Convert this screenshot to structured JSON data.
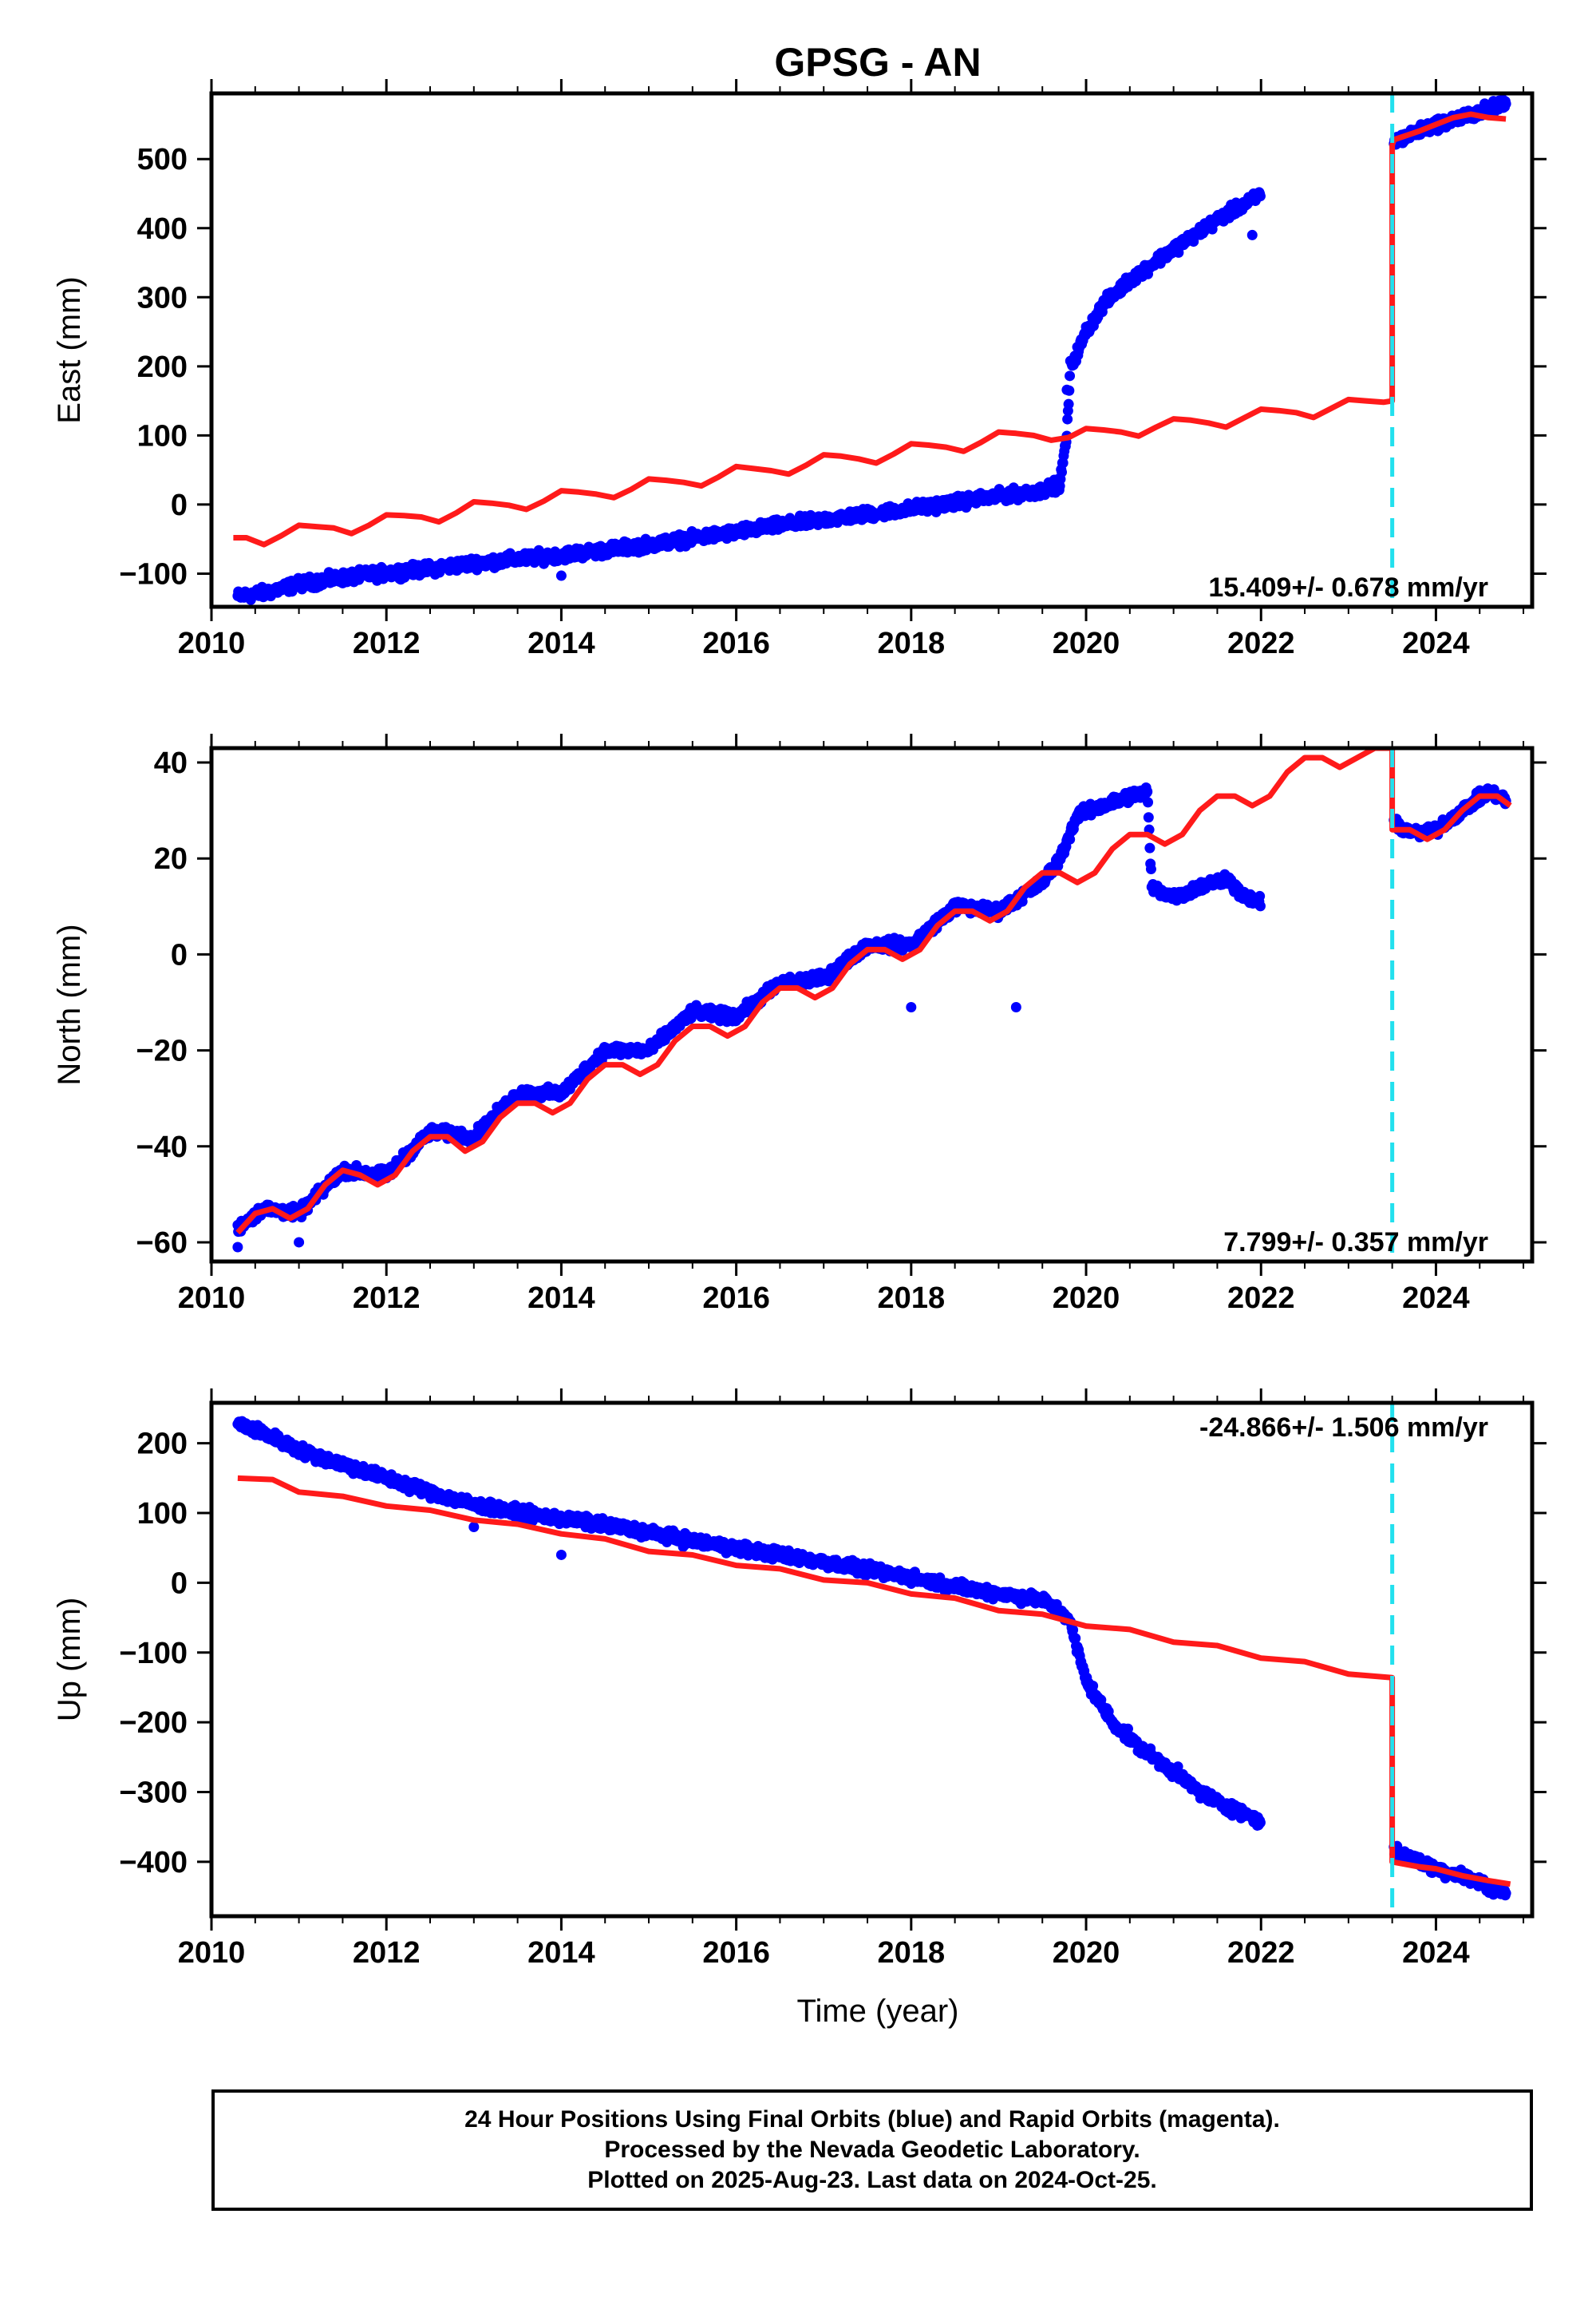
{
  "title": "GPSG - AN",
  "xlabel": "Time (year)",
  "colors": {
    "final_orbits": "#0000ff",
    "model": "#ff1a1a",
    "event_line": "#22e0ee",
    "axes": "#000000"
  },
  "footer": {
    "line1": "24 Hour Positions Using Final Orbits (blue) and Rapid Orbits (magenta).",
    "line2": "Processed by the Nevada Geodetic Laboratory.",
    "line3": "Plotted on 2025-Aug-23. Last data on 2024-Oct-25."
  },
  "chart_data": [
    {
      "type": "scatter",
      "panel": "east",
      "ylabel": "East (mm)",
      "rate_label": "15.409+/- 0.678 mm/yr",
      "xlim": [
        2010,
        2025.1
      ],
      "ylim": [
        -148,
        595
      ],
      "xticks": [
        2010,
        2012,
        2014,
        2016,
        2018,
        2020,
        2022,
        2024
      ],
      "yticks": [
        -100,
        0,
        100,
        200,
        300,
        400,
        500
      ],
      "event_line_x": 2023.5,
      "observations": [
        [
          2010.3,
          -133
        ],
        [
          2010.6,
          -128
        ],
        [
          2011.0,
          -115
        ],
        [
          2011.5,
          -106
        ],
        [
          2012.0,
          -99
        ],
        [
          2012.5,
          -93
        ],
        [
          2013.0,
          -85
        ],
        [
          2013.5,
          -79
        ],
        [
          2014.0,
          -73
        ],
        [
          2014.5,
          -66
        ],
        [
          2015.0,
          -58
        ],
        [
          2015.5,
          -49
        ],
        [
          2016.0,
          -40
        ],
        [
          2016.5,
          -30
        ],
        [
          2017.0,
          -22
        ],
        [
          2017.5,
          -14
        ],
        [
          2018.0,
          -6
        ],
        [
          2018.5,
          3
        ],
        [
          2019.0,
          12
        ],
        [
          2019.5,
          20
        ],
        [
          2019.7,
          30
        ],
        [
          2019.78,
          100
        ],
        [
          2019.82,
          200
        ],
        [
          2019.9,
          220
        ],
        [
          2020.0,
          250
        ],
        [
          2020.2,
          290
        ],
        [
          2020.5,
          325
        ],
        [
          2020.8,
          352
        ],
        [
          2021.0,
          370
        ],
        [
          2021.3,
          395
        ],
        [
          2021.6,
          420
        ],
        [
          2021.9,
          440
        ],
        [
          2022.0,
          450
        ],
        [
          2023.52,
          525
        ],
        [
          2023.8,
          540
        ],
        [
          2024.0,
          550
        ],
        [
          2024.3,
          560
        ],
        [
          2024.6,
          573
        ],
        [
          2024.8,
          580
        ]
      ],
      "outliers": [
        [
          2014.0,
          -103
        ],
        [
          2021.9,
          390
        ],
        [
          2019.78,
          166
        ]
      ],
      "model": [
        [
          2010.25,
          -48
        ],
        [
          2010.4,
          -48
        ],
        [
          2010.6,
          -58
        ],
        [
          2010.8,
          -45
        ],
        [
          2011.0,
          -30
        ],
        [
          2011.2,
          -32
        ],
        [
          2011.4,
          -34
        ],
        [
          2011.6,
          -42
        ],
        [
          2011.8,
          -30
        ],
        [
          2012.0,
          -15
        ],
        [
          2012.2,
          -16
        ],
        [
          2012.4,
          -18
        ],
        [
          2012.6,
          -25
        ],
        [
          2012.8,
          -12
        ],
        [
          2013.0,
          4
        ],
        [
          2013.2,
          2
        ],
        [
          2013.4,
          -1
        ],
        [
          2013.6,
          -7
        ],
        [
          2013.8,
          5
        ],
        [
          2014.0,
          20
        ],
        [
          2014.2,
          18
        ],
        [
          2014.4,
          15
        ],
        [
          2014.6,
          10
        ],
        [
          2014.8,
          22
        ],
        [
          2015.0,
          37
        ],
        [
          2015.2,
          35
        ],
        [
          2015.4,
          32
        ],
        [
          2015.6,
          27
        ],
        [
          2015.8,
          40
        ],
        [
          2016.0,
          55
        ],
        [
          2016.2,
          52
        ],
        [
          2016.4,
          49
        ],
        [
          2016.6,
          44
        ],
        [
          2016.8,
          57
        ],
        [
          2017.0,
          72
        ],
        [
          2017.2,
          70
        ],
        [
          2017.4,
          66
        ],
        [
          2017.6,
          60
        ],
        [
          2017.8,
          73
        ],
        [
          2018.0,
          88
        ],
        [
          2018.2,
          86
        ],
        [
          2018.4,
          83
        ],
        [
          2018.6,
          77
        ],
        [
          2018.8,
          90
        ],
        [
          2019.0,
          105
        ],
        [
          2019.2,
          103
        ],
        [
          2019.4,
          100
        ],
        [
          2019.6,
          93
        ],
        [
          2019.8,
          97
        ],
        [
          2020.0,
          110
        ],
        [
          2020.2,
          108
        ],
        [
          2020.4,
          105
        ],
        [
          2020.6,
          99
        ],
        [
          2020.8,
          112
        ],
        [
          2021.0,
          124
        ],
        [
          2021.2,
          122
        ],
        [
          2021.4,
          118
        ],
        [
          2021.6,
          112
        ],
        [
          2021.8,
          125
        ],
        [
          2022.0,
          138
        ],
        [
          2022.2,
          136
        ],
        [
          2022.4,
          133
        ],
        [
          2022.6,
          126
        ],
        [
          2022.8,
          139
        ],
        [
          2023.0,
          152
        ],
        [
          2023.2,
          150
        ],
        [
          2023.4,
          148
        ],
        [
          2023.5,
          150
        ],
        [
          2023.5,
          520
        ],
        [
          2023.52,
          528
        ],
        [
          2023.8,
          540
        ],
        [
          2024.0,
          550
        ],
        [
          2024.2,
          560
        ],
        [
          2024.4,
          565
        ],
        [
          2024.6,
          560
        ],
        [
          2024.8,
          558
        ]
      ]
    },
    {
      "type": "scatter",
      "panel": "north",
      "ylabel": "North (mm)",
      "rate_label": "7.799+/- 0.357 mm/yr",
      "xlim": [
        2010,
        2025.1
      ],
      "ylim": [
        -64,
        43
      ],
      "xticks": [
        2010,
        2012,
        2014,
        2016,
        2018,
        2020,
        2022,
        2024
      ],
      "yticks": [
        -60,
        -40,
        -20,
        0,
        20,
        40
      ],
      "event_line_x": 2023.5,
      "observations": [
        [
          2010.3,
          -57
        ],
        [
          2010.6,
          -53
        ],
        [
          2011.0,
          -54
        ],
        [
          2011.5,
          -45
        ],
        [
          2012.0,
          -46
        ],
        [
          2012.5,
          -37
        ],
        [
          2013.0,
          -38
        ],
        [
          2013.5,
          -29
        ],
        [
          2014.0,
          -29
        ],
        [
          2014.5,
          -20
        ],
        [
          2015.0,
          -20
        ],
        [
          2015.5,
          -12
        ],
        [
          2016.0,
          -13
        ],
        [
          2016.5,
          -6
        ],
        [
          2017.0,
          -5
        ],
        [
          2017.5,
          2
        ],
        [
          2018.0,
          2
        ],
        [
          2018.5,
          10
        ],
        [
          2019.0,
          9
        ],
        [
          2019.5,
          15
        ],
        [
          2019.7,
          20
        ],
        [
          2019.9,
          29
        ],
        [
          2020.2,
          31
        ],
        [
          2020.5,
          33
        ],
        [
          2020.7,
          34
        ],
        [
          2020.75,
          14
        ],
        [
          2021.0,
          12
        ],
        [
          2021.3,
          14
        ],
        [
          2021.6,
          16
        ],
        [
          2021.8,
          12
        ],
        [
          2022.0,
          11
        ],
        [
          2023.52,
          27
        ],
        [
          2023.8,
          25
        ],
        [
          2024.0,
          26
        ],
        [
          2024.3,
          30
        ],
        [
          2024.6,
          34
        ],
        [
          2024.8,
          32
        ]
      ],
      "outliers": [
        [
          2010.3,
          -61
        ],
        [
          2019.2,
          -11
        ],
        [
          2018.0,
          -11
        ],
        [
          2011.0,
          -60
        ]
      ],
      "model": [
        [
          2010.3,
          -58
        ],
        [
          2010.5,
          -54
        ],
        [
          2010.7,
          -53
        ],
        [
          2010.9,
          -55
        ],
        [
          2011.1,
          -53
        ],
        [
          2011.3,
          -48
        ],
        [
          2011.5,
          -45
        ],
        [
          2011.7,
          -46
        ],
        [
          2011.9,
          -48
        ],
        [
          2012.1,
          -46
        ],
        [
          2012.3,
          -41
        ],
        [
          2012.5,
          -38
        ],
        [
          2012.7,
          -38
        ],
        [
          2012.9,
          -41
        ],
        [
          2013.1,
          -39
        ],
        [
          2013.3,
          -34
        ],
        [
          2013.5,
          -31
        ],
        [
          2013.7,
          -31
        ],
        [
          2013.9,
          -33
        ],
        [
          2014.1,
          -31
        ],
        [
          2014.3,
          -26
        ],
        [
          2014.5,
          -23
        ],
        [
          2014.7,
          -23
        ],
        [
          2014.9,
          -25
        ],
        [
          2015.1,
          -23
        ],
        [
          2015.3,
          -18
        ],
        [
          2015.5,
          -15
        ],
        [
          2015.7,
          -15
        ],
        [
          2015.9,
          -17
        ],
        [
          2016.1,
          -15
        ],
        [
          2016.3,
          -10
        ],
        [
          2016.5,
          -7
        ],
        [
          2016.7,
          -7
        ],
        [
          2016.9,
          -9
        ],
        [
          2017.1,
          -7
        ],
        [
          2017.3,
          -2
        ],
        [
          2017.5,
          1
        ],
        [
          2017.7,
          1
        ],
        [
          2017.9,
          -1
        ],
        [
          2018.1,
          1
        ],
        [
          2018.3,
          6
        ],
        [
          2018.5,
          9
        ],
        [
          2018.7,
          9
        ],
        [
          2018.9,
          7
        ],
        [
          2019.1,
          9
        ],
        [
          2019.3,
          14
        ],
        [
          2019.5,
          17
        ],
        [
          2019.7,
          17
        ],
        [
          2019.9,
          15
        ],
        [
          2020.1,
          17
        ],
        [
          2020.3,
          22
        ],
        [
          2020.5,
          25
        ],
        [
          2020.7,
          25
        ],
        [
          2020.9,
          23
        ],
        [
          2021.1,
          25
        ],
        [
          2021.3,
          30
        ],
        [
          2021.5,
          33
        ],
        [
          2021.7,
          33
        ],
        [
          2021.9,
          31
        ],
        [
          2022.1,
          33
        ],
        [
          2022.3,
          38
        ],
        [
          2022.5,
          41
        ],
        [
          2022.7,
          41
        ],
        [
          2022.9,
          39
        ],
        [
          2023.1,
          41
        ],
        [
          2023.3,
          43
        ],
        [
          2023.5,
          43
        ],
        [
          2023.5,
          26
        ],
        [
          2023.7,
          26
        ],
        [
          2023.9,
          24
        ],
        [
          2024.1,
          26
        ],
        [
          2024.3,
          30
        ],
        [
          2024.5,
          33
        ],
        [
          2024.7,
          33
        ],
        [
          2024.85,
          31
        ]
      ]
    },
    {
      "type": "scatter",
      "panel": "up",
      "ylabel": "Up (mm)",
      "rate_label": "-24.866+/- 1.506 mm/yr",
      "xlim": [
        2010,
        2025.1
      ],
      "ylim": [
        -478,
        258
      ],
      "xticks": [
        2010,
        2012,
        2014,
        2016,
        2018,
        2020,
        2022,
        2024
      ],
      "yticks": [
        -400,
        -300,
        -200,
        -100,
        0,
        100,
        200
      ],
      "event_line_x": 2023.5,
      "observations": [
        [
          2010.3,
          228
        ],
        [
          2010.6,
          215
        ],
        [
          2011.0,
          190
        ],
        [
          2011.5,
          170
        ],
        [
          2012.0,
          150
        ],
        [
          2012.5,
          130
        ],
        [
          2013.0,
          112
        ],
        [
          2013.5,
          100
        ],
        [
          2014.0,
          92
        ],
        [
          2014.5,
          83
        ],
        [
          2015.0,
          72
        ],
        [
          2015.5,
          60
        ],
        [
          2016.0,
          50
        ],
        [
          2016.5,
          40
        ],
        [
          2017.0,
          30
        ],
        [
          2017.5,
          18
        ],
        [
          2018.0,
          8
        ],
        [
          2018.5,
          -5
        ],
        [
          2019.0,
          -15
        ],
        [
          2019.5,
          -25
        ],
        [
          2019.8,
          -50
        ],
        [
          2020.0,
          -140
        ],
        [
          2020.3,
          -200
        ],
        [
          2020.6,
          -235
        ],
        [
          2021.0,
          -270
        ],
        [
          2021.3,
          -300
        ],
        [
          2021.6,
          -320
        ],
        [
          2021.9,
          -335
        ],
        [
          2022.0,
          -345
        ],
        [
          2023.52,
          -385
        ],
        [
          2023.8,
          -400
        ],
        [
          2024.0,
          -410
        ],
        [
          2024.3,
          -420
        ],
        [
          2024.6,
          -435
        ],
        [
          2024.8,
          -445
        ]
      ],
      "outliers": [
        [
          2014.0,
          40
        ],
        [
          2013.0,
          80
        ]
      ],
      "model": [
        [
          2010.3,
          150
        ],
        [
          2010.7,
          148
        ],
        [
          2011.0,
          130
        ],
        [
          2011.5,
          124
        ],
        [
          2012.0,
          110
        ],
        [
          2012.5,
          104
        ],
        [
          2013.0,
          90
        ],
        [
          2013.5,
          84
        ],
        [
          2014.0,
          70
        ],
        [
          2014.5,
          63
        ],
        [
          2015.0,
          45
        ],
        [
          2015.5,
          40
        ],
        [
          2016.0,
          25
        ],
        [
          2016.5,
          20
        ],
        [
          2017.0,
          4
        ],
        [
          2017.5,
          0
        ],
        [
          2018.0,
          -16
        ],
        [
          2018.5,
          -22
        ],
        [
          2019.0,
          -40
        ],
        [
          2019.5,
          -45
        ],
        [
          2020.0,
          -62
        ],
        [
          2020.5,
          -67
        ],
        [
          2021.0,
          -85
        ],
        [
          2021.5,
          -90
        ],
        [
          2022.0,
          -108
        ],
        [
          2022.5,
          -113
        ],
        [
          2023.0,
          -131
        ],
        [
          2023.5,
          -136
        ],
        [
          2023.5,
          -400
        ],
        [
          2023.8,
          -407
        ],
        [
          2024.0,
          -410
        ],
        [
          2024.3,
          -420
        ],
        [
          2024.6,
          -427
        ],
        [
          2024.85,
          -432
        ]
      ]
    }
  ]
}
